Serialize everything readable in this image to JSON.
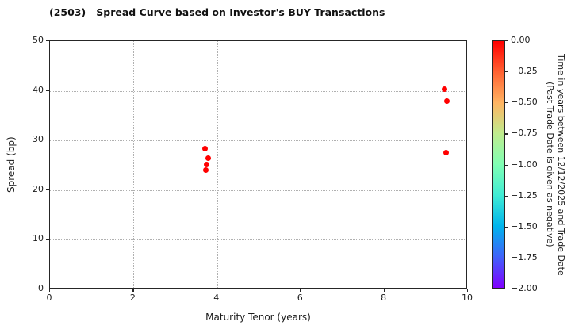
{
  "chart_data": {
    "type": "scatter",
    "title": "(2503)   Spread Curve based on Investor's BUY Transactions",
    "xlabel": "Maturity Tenor (years)",
    "ylabel": "Spread (bp)",
    "xlim": [
      0,
      10
    ],
    "ylim": [
      0,
      50
    ],
    "x_ticks": [
      0,
      2,
      4,
      6,
      8,
      10
    ],
    "y_ticks": [
      0,
      10,
      20,
      30,
      40,
      50
    ],
    "grid": true,
    "legend_position": "none",
    "points": [
      {
        "x": 3.71,
        "y": 28.3,
        "time_value": 0.0,
        "color": "#ff0000"
      },
      {
        "x": 3.78,
        "y": 26.4,
        "time_value": 0.0,
        "color": "#ff0000"
      },
      {
        "x": 3.75,
        "y": 25.2,
        "time_value": 0.0,
        "color": "#ff0000"
      },
      {
        "x": 3.72,
        "y": 24.1,
        "time_value": 0.0,
        "color": "#ff0000"
      },
      {
        "x": 9.44,
        "y": 40.4,
        "time_value": 0.0,
        "color": "#ff0000"
      },
      {
        "x": 9.49,
        "y": 37.9,
        "time_value": 0.0,
        "color": "#ff0000"
      },
      {
        "x": 9.47,
        "y": 27.5,
        "time_value": 0.0,
        "color": "#ff0000"
      }
    ],
    "colorbar": {
      "label_line1": "Time in years between 12/12/2025 and Trade Date",
      "label_line2": "(Past Trade Date is given as negative)",
      "tick_labels": [
        "0.00",
        "−0.25",
        "−0.50",
        "−0.75",
        "−1.00",
        "−1.25",
        "−1.50",
        "−1.75",
        "−2.00"
      ],
      "range": [
        0.0,
        -2.0
      ],
      "gradient_colors": [
        "#ff0000",
        "#ff6232",
        "#ffb462",
        "#bfec8e",
        "#80ffb4",
        "#40ecd4",
        "#00b4ec",
        "#4062fa",
        "#8000ff"
      ]
    }
  }
}
